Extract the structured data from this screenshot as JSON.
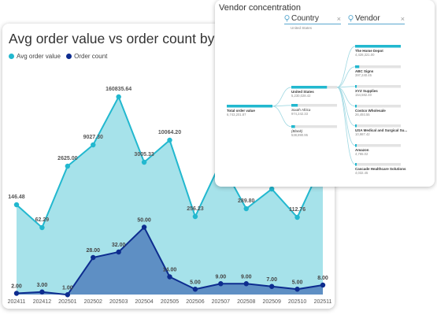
{
  "chart_card": {
    "title": "Avg order value vs order count by month"
  },
  "chart_data": {
    "type": "area",
    "x": [
      "202411",
      "202412",
      "202501",
      "202502",
      "202503",
      "202504",
      "202505",
      "202506",
      "202507",
      "202508",
      "202509",
      "202510",
      "202511"
    ],
    "series": [
      {
        "name": "Avg order value",
        "color": "#22b8cf",
        "fill": "#a6e2ea",
        "labels": [
          "146.48",
          "62.29",
          "2625.00",
          "9027.30",
          "160835.64",
          "3005.33",
          "10064.20",
          "256.23",
          "",
          "289.80",
          "",
          "112.76",
          ""
        ]
      },
      {
        "name": "Order count",
        "color": "#0d2c8f",
        "fill": "#5e8fc4",
        "values": [
          2,
          3,
          1,
          28,
          32,
          50,
          14,
          5,
          9,
          9,
          7,
          5,
          8
        ],
        "labels": [
          "2.00",
          "3.00",
          "1.00",
          "28.00",
          "32.00",
          "50.00",
          "14.00",
          "5.00",
          "9.00",
          "9.00",
          "7.00",
          "5.00",
          "8.00"
        ]
      }
    ]
  },
  "vendor_card": {
    "title": "Vendor concentration",
    "filter_country": {
      "label": "Country",
      "selected": "United States"
    },
    "filter_vendor": {
      "label": "Vendor"
    },
    "close_glyph": "×",
    "root": {
      "label": "Total order value",
      "value": "6,743,201.87",
      "share": 1.0
    },
    "countries": [
      {
        "label": "United States",
        "value": "5,230,028.42",
        "share": 0.78,
        "selected": true
      },
      {
        "label": "South Africa",
        "value": "974,242.33",
        "share": 0.14
      },
      {
        "label": "(Blank)",
        "value": "538,890.95",
        "share": 0.08
      }
    ],
    "vendors": [
      {
        "label": "The Home Depot",
        "value": "4,428,321.00",
        "share": 1.0
      },
      {
        "label": "ABC Signs",
        "value": "397,240.45",
        "share": 0.09
      },
      {
        "label": "XYZ Supplies",
        "value": "154,582.40",
        "share": 0.035
      },
      {
        "label": "Costco Wholesale",
        "value": "26,493.55",
        "share": 0.01
      },
      {
        "label": "USA Medical and Surgical Su...",
        "value": "10,987.42",
        "share": 0.005
      },
      {
        "label": "Amazon",
        "value": "4,765.02",
        "share": 0.004
      },
      {
        "label": "Cascade Healthcare Solutions",
        "value": "4,032.45",
        "share": 0.003
      }
    ]
  }
}
